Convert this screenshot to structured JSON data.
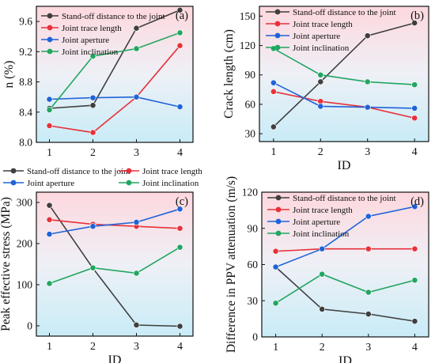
{
  "series_colors": [
    "#3f3f3f",
    "#e8313a",
    "#1f63d8",
    "#22a660"
  ],
  "chart_data": [
    {
      "type": "line",
      "panel_label": "(a)",
      "xlabel": "",
      "ylabel": "n (%)",
      "x": [
        1,
        2,
        3,
        4
      ],
      "xlim": [
        0.7,
        4.3
      ],
      "ylim": [
        8.0,
        9.8
      ],
      "yticks": [
        8.0,
        8.4,
        8.8,
        9.2,
        9.6
      ],
      "yticks_labels": [
        "8.0",
        "8.4",
        "8.8",
        "9.2",
        "9.6"
      ],
      "legend_position": "top-left",
      "series": [
        {
          "name": "Stand-off distance to the joint",
          "values": [
            8.45,
            8.49,
            9.51,
            9.75
          ]
        },
        {
          "name": "Joint trace length",
          "values": [
            8.22,
            8.13,
            8.6,
            9.28
          ]
        },
        {
          "name": "Joint aperture",
          "values": [
            8.57,
            8.59,
            8.6,
            8.47
          ]
        },
        {
          "name": "Joint inclination",
          "values": [
            8.43,
            9.14,
            9.24,
            9.45
          ]
        }
      ]
    },
    {
      "type": "line",
      "panel_label": "(b)",
      "xlabel": "ID",
      "ylabel": "Crack length (cm)",
      "x": [
        1,
        2,
        3,
        4
      ],
      "xlim": [
        0.7,
        4.3
      ],
      "ylim": [
        22,
        160
      ],
      "yticks": [
        30,
        60,
        90,
        120,
        150
      ],
      "yticks_labels": [
        "30",
        "60",
        "90",
        "120",
        "150"
      ],
      "legend_position": "top-left",
      "series": [
        {
          "name": "Stand-off distance to the joint",
          "values": [
            37,
            83,
            130,
            143
          ]
        },
        {
          "name": "Joint trace length",
          "values": [
            73,
            63,
            57,
            46
          ]
        },
        {
          "name": "Joint aperture",
          "values": [
            82,
            58,
            57,
            56
          ]
        },
        {
          "name": "Joint inclination",
          "values": [
            117,
            90,
            83,
            80
          ]
        }
      ]
    },
    {
      "type": "line",
      "panel_label": "(c)",
      "xlabel": "ID",
      "ylabel": "Peak effective stress (MPa)",
      "x": [
        1,
        2,
        3,
        4
      ],
      "xlim": [
        0.7,
        4.3
      ],
      "ylim": [
        -25,
        325
      ],
      "yticks": [
        0,
        100,
        200,
        300
      ],
      "yticks_labels": [
        "0",
        "100",
        "200",
        "300"
      ],
      "legend_position": "top",
      "series": [
        {
          "name": "Stand-off distance to the joint",
          "values": [
            293,
            140,
            2,
            -1
          ]
        },
        {
          "name": "Joint trace length",
          "values": [
            258,
            247,
            242,
            237
          ]
        },
        {
          "name": "Joint aperture",
          "values": [
            223,
            242,
            252,
            284
          ]
        },
        {
          "name": "Joint inclination",
          "values": [
            103,
            141,
            128,
            191
          ]
        }
      ]
    },
    {
      "type": "line",
      "panel_label": "(d)",
      "xlabel": "ID",
      "ylabel": "Difference in PPV attenuation (m/s)",
      "x": [
        1,
        2,
        3,
        4
      ],
      "xlim": [
        0.7,
        4.3
      ],
      "ylim": [
        0,
        120
      ],
      "yticks": [
        0,
        30,
        60,
        90,
        120
      ],
      "yticks_labels": [
        "0",
        "30",
        "60",
        "90",
        "120"
      ],
      "legend_position": "top-left",
      "series": [
        {
          "name": "Stand-off distance to the joint",
          "values": [
            58,
            23,
            19,
            13
          ]
        },
        {
          "name": "Joint trace length",
          "values": [
            71,
            73,
            73,
            73
          ]
        },
        {
          "name": "Joint aperture",
          "values": [
            58,
            73,
            100,
            108
          ]
        },
        {
          "name": "Joint inclination",
          "values": [
            28,
            52,
            37,
            47
          ]
        }
      ]
    }
  ]
}
